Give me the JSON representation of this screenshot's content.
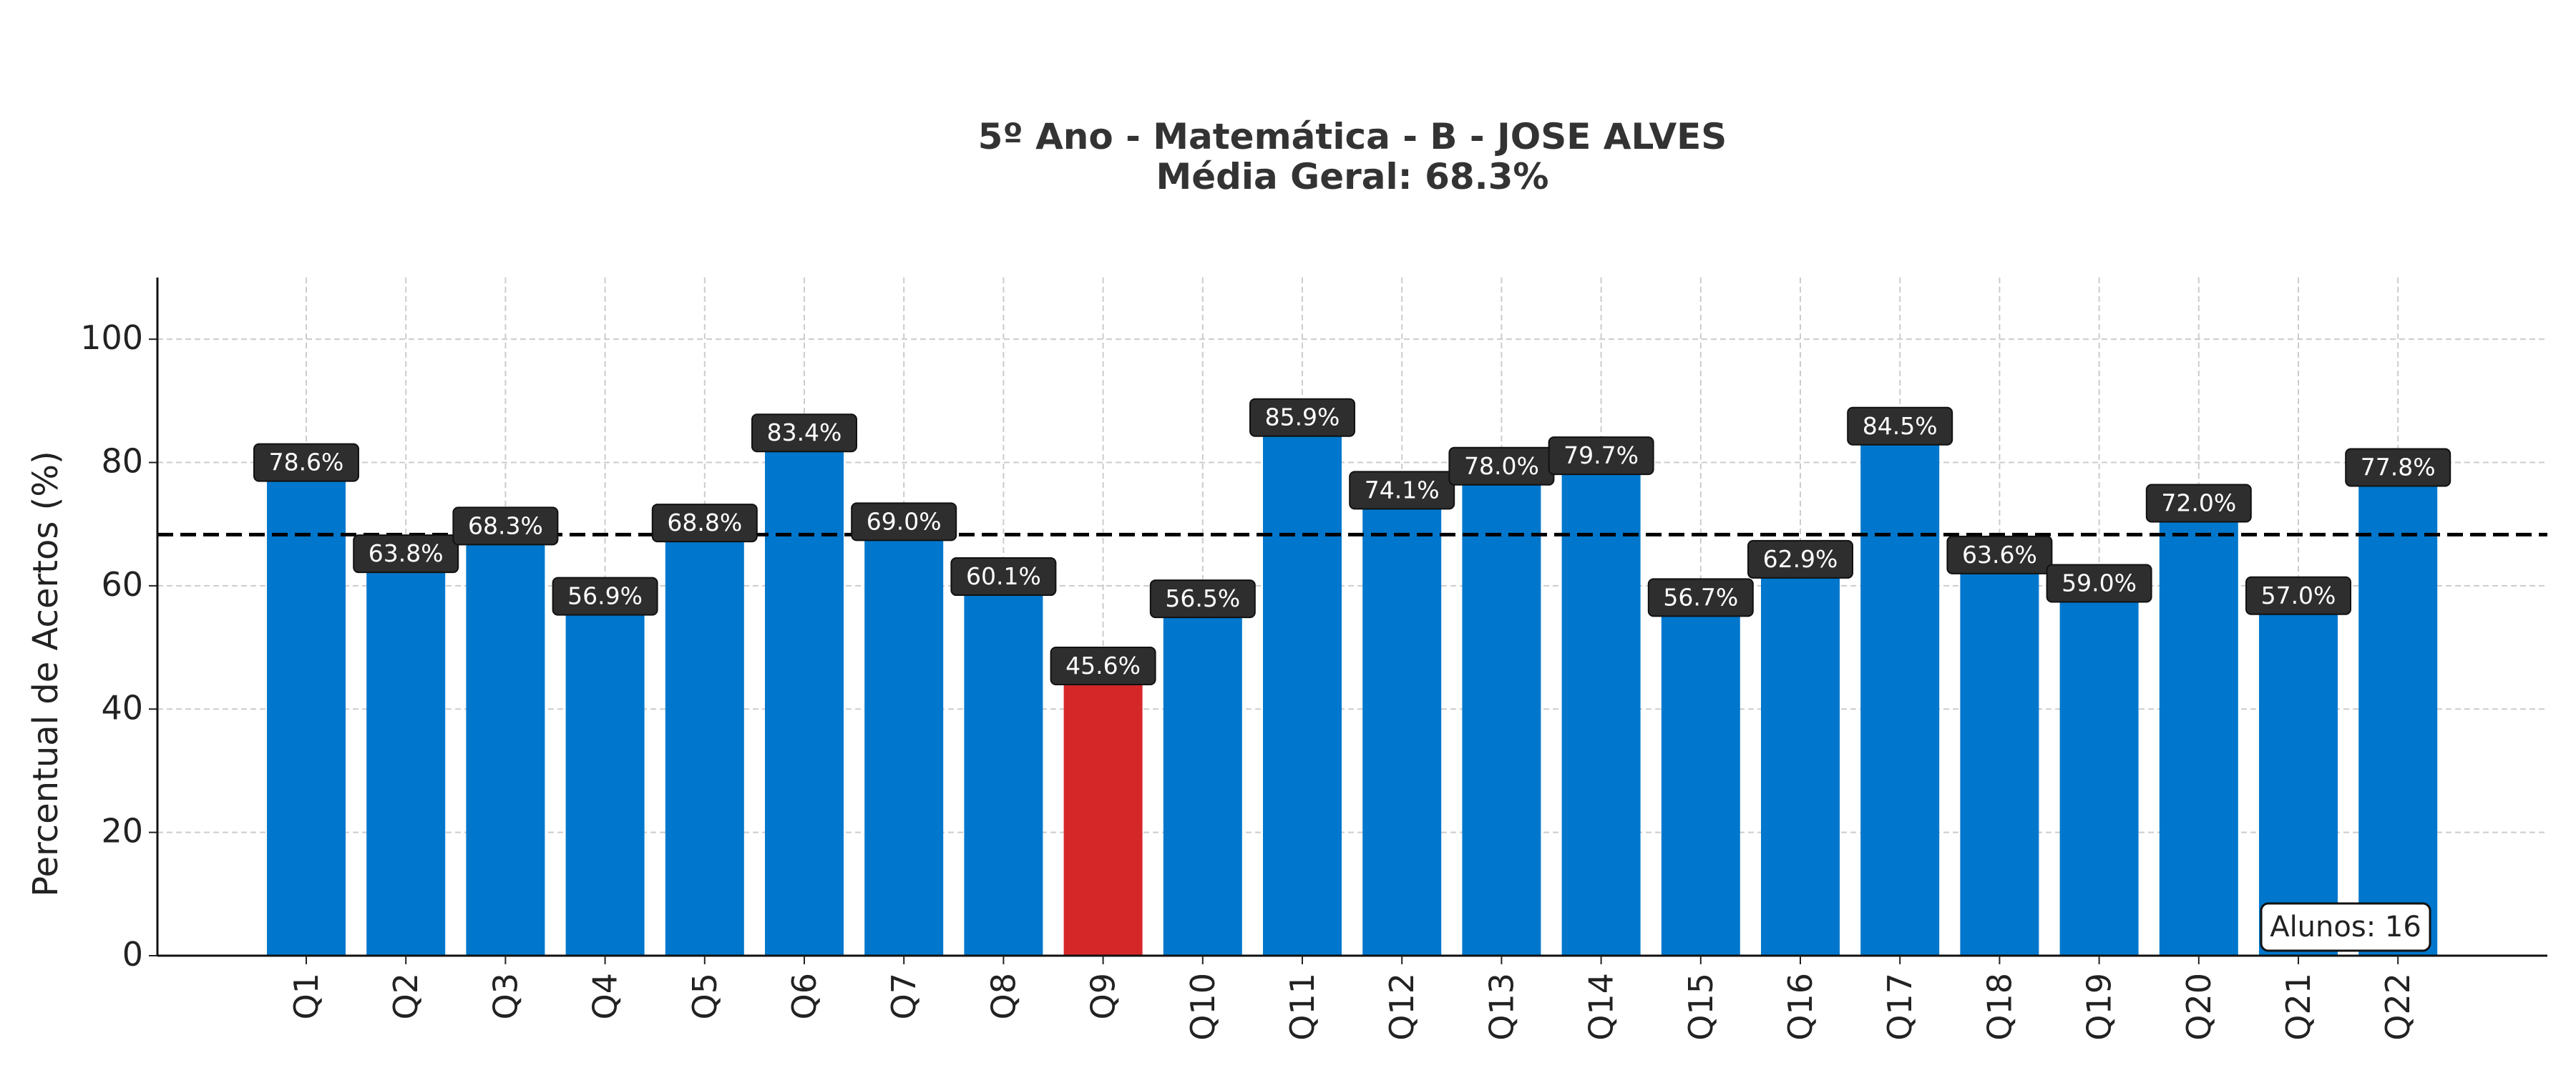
{
  "chart_data": {
    "type": "bar",
    "title": "5º Ano - Matemática - B - JOSE ALVES",
    "subtitle": "Média Geral: 68.3%",
    "xlabel": "",
    "ylabel": "Percentual de Acertos (%)",
    "ylim": [
      0,
      110
    ],
    "yticks": [
      0,
      20,
      40,
      60,
      80,
      100
    ],
    "grid": true,
    "categories": [
      "Q1",
      "Q2",
      "Q3",
      "Q4",
      "Q5",
      "Q6",
      "Q7",
      "Q8",
      "Q9",
      "Q10",
      "Q11",
      "Q12",
      "Q13",
      "Q14",
      "Q15",
      "Q16",
      "Q17",
      "Q18",
      "Q19",
      "Q20",
      "Q21",
      "Q22"
    ],
    "values": [
      78.6,
      63.8,
      68.3,
      56.9,
      68.8,
      83.4,
      69.0,
      60.1,
      45.6,
      56.5,
      85.9,
      74.1,
      78.0,
      79.7,
      56.7,
      62.9,
      84.5,
      63.6,
      59.0,
      72.0,
      57.0,
      77.8
    ],
    "value_labels": [
      "78.6%",
      "63.8%",
      "68.3%",
      "56.9%",
      "68.8%",
      "83.4%",
      "69.0%",
      "60.1%",
      "45.6%",
      "56.5%",
      "85.9%",
      "74.1%",
      "78.0%",
      "79.7%",
      "56.7%",
      "62.9%",
      "84.5%",
      "63.6%",
      "59.0%",
      "72.0%",
      "57.0%",
      "77.8%"
    ],
    "highlight_index": 8,
    "mean_line": 68.3,
    "annotation": "Alunos: 16",
    "colors": {
      "bar": "#0077cc",
      "highlight": "#d62728",
      "label_bg": "#2e2e2e",
      "label_text": "#ffffff",
      "mean_line": "#000000"
    }
  }
}
